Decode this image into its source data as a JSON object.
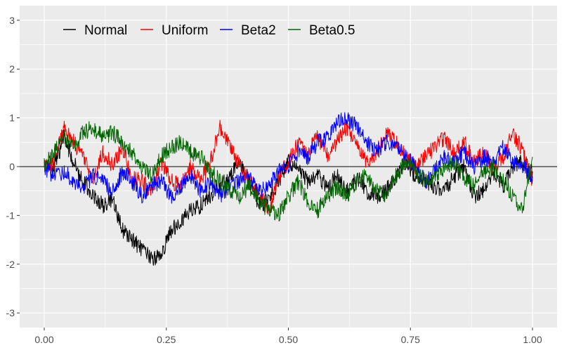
{
  "chart_data": {
    "type": "line",
    "title": "",
    "xlabel": "",
    "ylabel": "",
    "xlim": [
      0,
      1
    ],
    "ylim": [
      -3.3,
      3.3
    ],
    "x_ticks": [
      0,
      0.25,
      0.5,
      0.75,
      1
    ],
    "x_tick_labels": [
      "0.00",
      "0.25",
      "0.50",
      "0.75",
      "1.00"
    ],
    "y_ticks": [
      -3,
      -2,
      -1,
      0,
      1,
      2,
      3
    ],
    "y_tick_labels": [
      "-3",
      "-2",
      "-1",
      "0",
      "1",
      "2",
      "3"
    ],
    "grid": true,
    "legend_position": "top-left",
    "reference_line": {
      "y": 0,
      "color": "#000000"
    },
    "background_color": "#ebebeb",
    "grid_color": "#ffffff",
    "series": [
      {
        "name": "Normal",
        "color": "#000000",
        "x": [
          0,
          0.02,
          0.04,
          0.06,
          0.08,
          0.1,
          0.12,
          0.14,
          0.16,
          0.18,
          0.2,
          0.22,
          0.24,
          0.26,
          0.28,
          0.3,
          0.32,
          0.34,
          0.36,
          0.38,
          0.4,
          0.42,
          0.44,
          0.46,
          0.48,
          0.5,
          0.52,
          0.54,
          0.56,
          0.58,
          0.6,
          0.62,
          0.64,
          0.66,
          0.68,
          0.7,
          0.72,
          0.74,
          0.76,
          0.78,
          0.8,
          0.82,
          0.84,
          0.86,
          0.88,
          0.9,
          0.92,
          0.94,
          0.96,
          0.98,
          1.0
        ],
        "y": [
          0,
          -0.05,
          0.6,
          0.1,
          -0.3,
          -0.6,
          -0.8,
          -0.7,
          -1.3,
          -1.5,
          -1.7,
          -1.9,
          -1.8,
          -1.3,
          -1.1,
          -0.9,
          -0.8,
          -0.6,
          -0.4,
          -0.2,
          0.1,
          -0.3,
          -0.8,
          -0.7,
          -0.3,
          0.1,
          -0.05,
          -0.3,
          -0.2,
          -0.4,
          -0.2,
          -0.5,
          -0.2,
          -0.5,
          -0.6,
          -0.5,
          -0.2,
          0.1,
          -0.2,
          -0.3,
          -0.4,
          -0.5,
          -0.2,
          0.0,
          -0.6,
          -0.5,
          -0.1,
          -0.4,
          0.0,
          0.1,
          -0.1
        ]
      },
      {
        "name": "Uniform",
        "color": "#ff0000",
        "x": [
          0,
          0.02,
          0.04,
          0.06,
          0.08,
          0.1,
          0.12,
          0.14,
          0.16,
          0.18,
          0.2,
          0.22,
          0.24,
          0.26,
          0.28,
          0.3,
          0.32,
          0.34,
          0.36,
          0.38,
          0.4,
          0.42,
          0.44,
          0.46,
          0.48,
          0.5,
          0.52,
          0.54,
          0.56,
          0.58,
          0.6,
          0.62,
          0.64,
          0.66,
          0.68,
          0.7,
          0.72,
          0.74,
          0.76,
          0.78,
          0.8,
          0.82,
          0.84,
          0.86,
          0.88,
          0.9,
          0.92,
          0.94,
          0.96,
          0.98,
          1.0
        ],
        "y": [
          0,
          0.1,
          0.8,
          0.5,
          0.2,
          -0.3,
          0.3,
          0.0,
          0.4,
          -0.2,
          -0.3,
          -0.5,
          0.1,
          -0.3,
          -0.4,
          0.0,
          -0.3,
          0.1,
          0.8,
          0.4,
          0.0,
          -0.3,
          -0.6,
          -0.9,
          -0.2,
          0.1,
          0.5,
          0.3,
          0.6,
          0.2,
          0.5,
          0.8,
          0.4,
          0.1,
          0.3,
          0.7,
          0.5,
          0.2,
          0.0,
          0.2,
          0.4,
          0.6,
          0.3,
          0.5,
          0.1,
          0.3,
          0.0,
          0.2,
          0.7,
          0.3,
          -0.3
        ]
      },
      {
        "name": "Beta2",
        "color": "#0000ff",
        "x": [
          0,
          0.02,
          0.04,
          0.06,
          0.08,
          0.1,
          0.12,
          0.14,
          0.16,
          0.18,
          0.2,
          0.22,
          0.24,
          0.26,
          0.28,
          0.3,
          0.32,
          0.34,
          0.36,
          0.38,
          0.4,
          0.42,
          0.44,
          0.46,
          0.48,
          0.5,
          0.52,
          0.54,
          0.56,
          0.58,
          0.6,
          0.62,
          0.64,
          0.66,
          0.68,
          0.7,
          0.72,
          0.74,
          0.76,
          0.78,
          0.8,
          0.82,
          0.84,
          0.86,
          0.88,
          0.9,
          0.92,
          0.94,
          0.96,
          0.98,
          1.0
        ],
        "y": [
          0,
          -0.2,
          -0.1,
          -0.3,
          -0.4,
          -0.2,
          -0.3,
          -0.5,
          -0.1,
          -0.3,
          -0.6,
          -0.4,
          -0.3,
          -0.6,
          -0.4,
          -0.2,
          -0.5,
          -0.3,
          -0.6,
          -0.4,
          -0.3,
          -0.2,
          -0.5,
          -0.4,
          -0.1,
          0.0,
          0.3,
          0.2,
          0.5,
          0.6,
          0.9,
          1.0,
          0.8,
          0.5,
          0.3,
          0.5,
          0.4,
          0.2,
          0.0,
          -0.3,
          -0.1,
          0.2,
          0.1,
          0.3,
          0.0,
          0.2,
          0.1,
          0.4,
          0.1,
          0.0,
          -0.2
        ]
      },
      {
        "name": "Beta0.5",
        "color": "#006400",
        "x": [
          0,
          0.02,
          0.04,
          0.06,
          0.08,
          0.1,
          0.12,
          0.14,
          0.16,
          0.18,
          0.2,
          0.22,
          0.24,
          0.26,
          0.28,
          0.3,
          0.32,
          0.34,
          0.36,
          0.38,
          0.4,
          0.42,
          0.44,
          0.46,
          0.48,
          0.5,
          0.52,
          0.54,
          0.56,
          0.58,
          0.6,
          0.62,
          0.64,
          0.66,
          0.68,
          0.7,
          0.72,
          0.74,
          0.76,
          0.78,
          0.8,
          0.82,
          0.84,
          0.86,
          0.88,
          0.9,
          0.92,
          0.94,
          0.96,
          0.98,
          1.0
        ],
        "y": [
          0,
          0.3,
          0.6,
          0.4,
          0.7,
          0.8,
          0.6,
          0.7,
          0.5,
          0.3,
          0.0,
          -0.2,
          0.2,
          0.4,
          0.5,
          0.3,
          0.2,
          -0.1,
          -0.3,
          -0.5,
          -0.6,
          -0.4,
          -0.7,
          -0.9,
          -1.0,
          -0.6,
          -0.3,
          -0.7,
          -0.9,
          -0.6,
          -0.4,
          -0.6,
          -0.3,
          -0.2,
          -0.5,
          -0.6,
          -0.2,
          0.1,
          -0.1,
          -0.3,
          -0.2,
          0.0,
          0.1,
          -0.2,
          -0.4,
          -0.1,
          0.0,
          -0.3,
          -0.6,
          -0.9,
          0.2
        ]
      }
    ]
  }
}
